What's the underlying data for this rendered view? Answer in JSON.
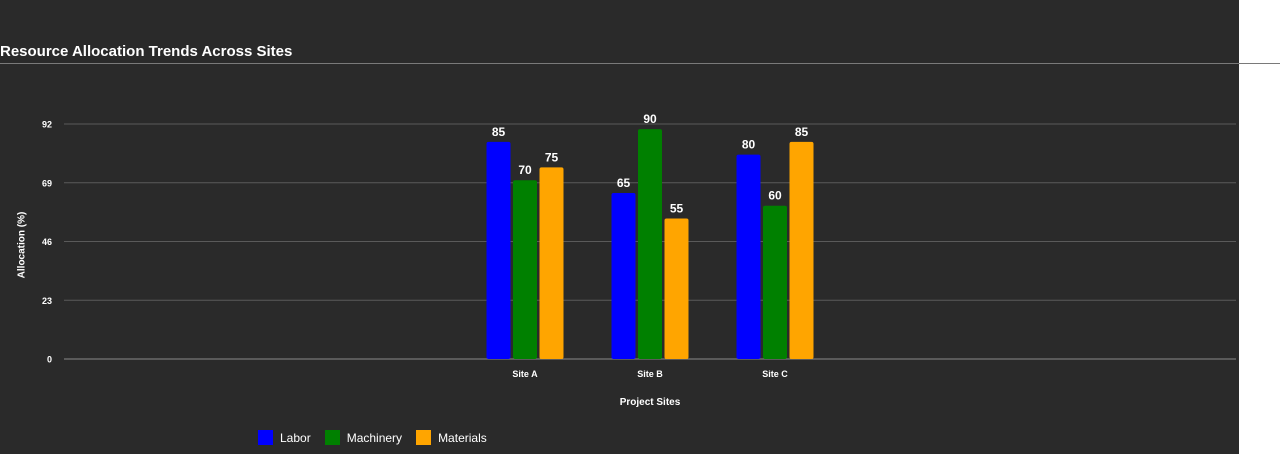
{
  "chart_data": {
    "type": "bar",
    "title": "Resource Allocation Trends Across Sites",
    "xlabel": "Project Sites",
    "ylabel": "Allocation (%)",
    "categories": [
      "Site A",
      "Site B",
      "Site C"
    ],
    "series": [
      {
        "name": "Labor",
        "color": "#0000ff",
        "values": [
          85,
          65,
          80
        ]
      },
      {
        "name": "Machinery",
        "color": "#008000",
        "values": [
          70,
          90,
          60
        ]
      },
      {
        "name": "Materials",
        "color": "#ffa500",
        "values": [
          75,
          55,
          85
        ]
      }
    ],
    "ylim": [
      0,
      92
    ],
    "yticks": [
      0,
      23,
      46,
      69,
      92
    ],
    "grid": true,
    "legend_position": "bottom-left",
    "data_labels": true
  }
}
